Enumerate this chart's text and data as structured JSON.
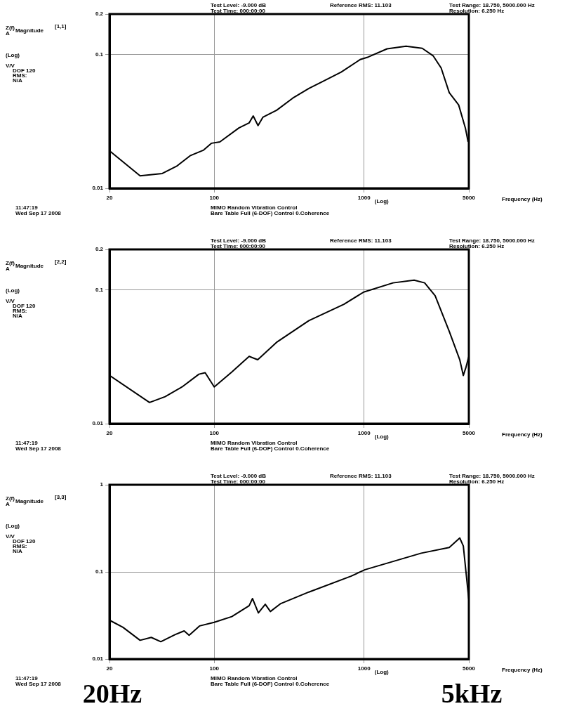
{
  "chart_data": [
    {
      "type": "line",
      "xlabel": "Frequency (Hz)",
      "ylabel": "Magnitude",
      "log": "xy",
      "grid": true,
      "xlim": [
        20,
        5000
      ],
      "xticks": [
        20,
        100,
        1000,
        5000
      ],
      "ylim": [
        0.01,
        0.2
      ],
      "yticks": [
        0.01,
        0.1,
        0.2
      ],
      "annotations": [
        "Test Level: -9.000 dB",
        "Test Time: 000:00:00",
        "Reference RMS: 11.103",
        "Test Range: 18.750, 5000.000 Hz",
        "Resolution: 6.250 Hz",
        "Z(f)",
        "[1,1]",
        "A",
        "(Log)",
        "V/V",
        "DOF 120",
        "RMS:",
        "N/A",
        "(Log)",
        "11:47:19",
        "Wed Sep 17 2008",
        "MIMO Random Vibration Control",
        "Bare Table Full (6-DOF) Control 0.Coherence"
      ],
      "series": [
        {
          "color": "#000000",
          "x": [
            20.3,
            32,
            45,
            56,
            69,
            85,
            96,
            109,
            146,
            171,
            182,
            196,
            211,
            261,
            334,
            428,
            525,
            703,
            940,
            1065,
            1423,
            1905,
            2443,
            2886,
            3267,
            3700,
            4276,
            4740,
            4946
          ],
          "values": [
            0.0188,
            0.0124,
            0.0129,
            0.0146,
            0.0175,
            0.0193,
            0.0217,
            0.0222,
            0.0282,
            0.0308,
            0.0347,
            0.0294,
            0.0339,
            0.0383,
            0.0471,
            0.0556,
            0.0625,
            0.0737,
            0.0914,
            0.0955,
            0.11,
            0.115,
            0.111,
            0.0977,
            0.0791,
            0.0518,
            0.0419,
            0.0282,
            0.0222
          ]
        }
      ]
    },
    {
      "type": "line",
      "xlabel": "Frequency (Hz)",
      "ylabel": "Magnitude",
      "log": "xy",
      "grid": true,
      "xlim": [
        20,
        5000
      ],
      "xticks": [
        20,
        100,
        1000,
        5000
      ],
      "ylim": [
        0.01,
        0.2
      ],
      "yticks": [
        0.01,
        0.1,
        0.2
      ],
      "annotations": [
        "Test Level: -9.000 dB",
        "Test Time: 000:00:00",
        "Reference RMS: 11.103",
        "Test Range: 18.750, 5000.000 Hz",
        "Resolution: 6.250 Hz",
        "Z(f)",
        "[2,2]",
        "A",
        "(Log)",
        "V/V",
        "DOF 120",
        "RMS:",
        "N/A",
        "(Log)",
        "11:47:19",
        "Wed Sep 17 2008",
        "MIMO Random Vibration Control",
        "Bare Table Full (6-DOF) Control 0.Coherence"
      ],
      "series": [
        {
          "color": "#000000",
          "x": [
            20,
            37,
            47,
            61,
            79,
            87,
            100,
            131,
            171,
            195,
            263,
            428,
            733,
            993,
            1561,
            2157,
            2535,
            2978,
            3700,
            4348,
            4593,
            4790,
            5000
          ],
          "values": [
            0.0229,
            0.0144,
            0.0159,
            0.0188,
            0.0234,
            0.024,
            0.0188,
            0.0243,
            0.0318,
            0.03,
            0.0408,
            0.0588,
            0.0778,
            0.096,
            0.1125,
            0.118,
            0.1125,
            0.0902,
            0.0489,
            0.03,
            0.0229,
            0.0265,
            0.0318
          ]
        }
      ]
    },
    {
      "type": "line",
      "xlabel": "Frequency (Hz)",
      "ylabel": "Magnitude",
      "log": "xy",
      "grid": true,
      "xlim": [
        20,
        5000
      ],
      "xticks": [
        20,
        100,
        1000,
        5000
      ],
      "ylim": [
        0.01,
        1
      ],
      "yticks": [
        0.01,
        0.1,
        1
      ],
      "annotations": [
        "Test Level: -9.000 dB",
        "Test Time: 000:00:00",
        "Reference RMS: 11.103",
        "Test Range: 18.750, 5000.000 Hz",
        "Resolution: 6.250 Hz",
        "Z(f)",
        "[3,3]",
        "A",
        "(Log)",
        "V/V",
        "DOF 120",
        "RMS:",
        "N/A",
        "(Log)",
        "11:47:19",
        "Wed Sep 17 2008",
        "MIMO Random Vibration Control",
        "Bare Table Full (6-DOF) Control 0.Coherence",
        "20Hz",
        "5kHz"
      ],
      "series": [
        {
          "color": "#000000",
          "x": [
            20,
            24.6,
            32,
            38,
            44,
            55,
            63,
            68,
            80,
            100,
            131,
            171,
            180,
            197,
            219,
            237,
            278,
            428,
            817,
            1014,
            2404,
            3700,
            4348,
            4593,
            5000
          ],
          "values": [
            0.0279,
            0.0231,
            0.0164,
            0.0177,
            0.0158,
            0.0191,
            0.021,
            0.0187,
            0.024,
            0.0264,
            0.0307,
            0.0409,
            0.0494,
            0.0338,
            0.0425,
            0.0351,
            0.0433,
            0.0587,
            0.0892,
            0.106,
            0.164,
            0.191,
            0.245,
            0.198,
            0.0476
          ]
        }
      ]
    }
  ]
}
